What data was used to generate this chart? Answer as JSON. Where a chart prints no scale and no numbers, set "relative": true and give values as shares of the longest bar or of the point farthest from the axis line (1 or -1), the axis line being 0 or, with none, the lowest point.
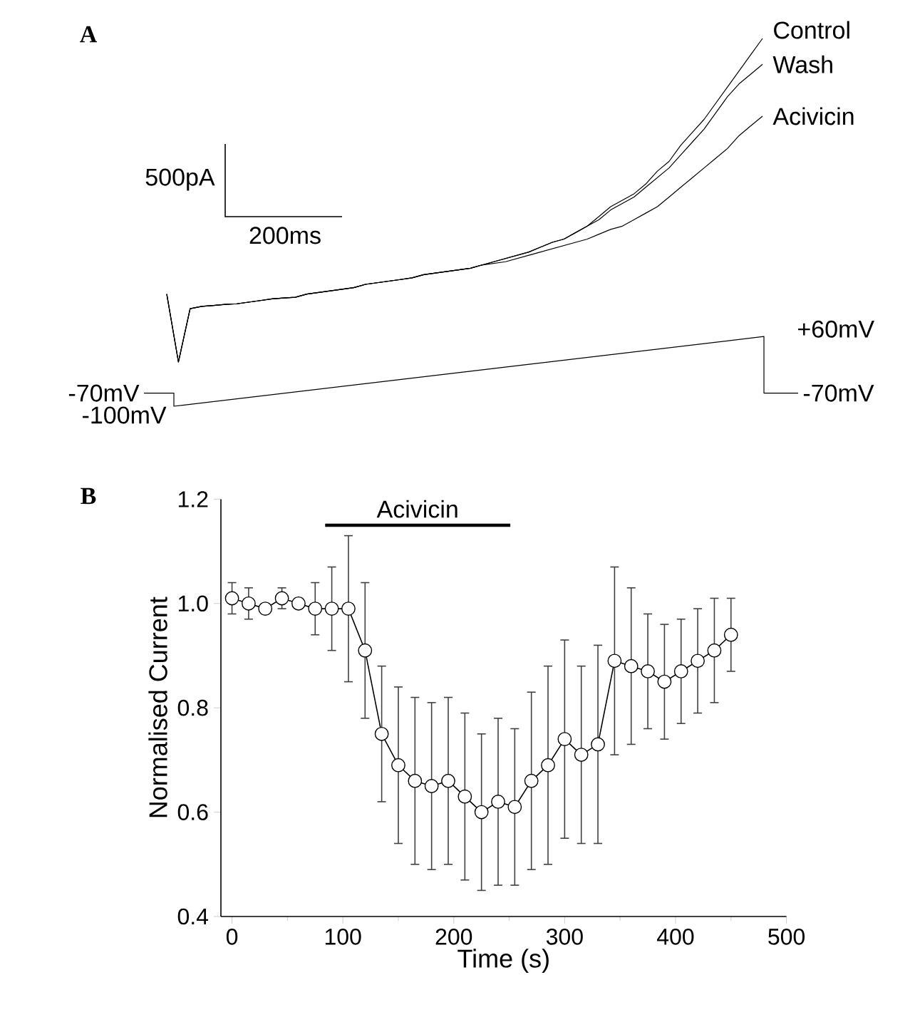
{
  "chart_data": [
    {
      "type": "line",
      "title": "A",
      "relative": true,
      "annotations": [
        "500pA",
        "200ms"
      ],
      "categories": [
        null,
        null,
        null,
        null,
        null,
        null,
        null,
        null,
        null,
        null,
        null,
        null,
        null,
        null,
        null,
        null,
        null,
        null,
        null,
        null,
        null,
        null,
        null,
        null,
        null,
        null,
        null,
        null,
        null,
        null,
        null,
        null,
        null,
        null,
        null,
        null,
        null,
        null,
        null,
        null,
        null,
        null,
        null,
        null,
        null,
        null,
        null,
        null,
        null,
        null,
        null,
        null
      ],
      "series": [
        {
          "name": "Control",
          "color": "#000000",
          "values": [
            0.21,
            0,
            0.165,
            0.172,
            0.175,
            0.178,
            0.18,
            0.185,
            0.19,
            0.195,
            0.198,
            0.2,
            0.21,
            0.215,
            0.22,
            0.225,
            0.23,
            0.24,
            0.245,
            0.25,
            0.255,
            0.26,
            0.27,
            0.275,
            0.28,
            0.285,
            0.29,
            0.3,
            0.31,
            0.32,
            0.33,
            0.34,
            0.355,
            0.37,
            0.38,
            0.4,
            0.42,
            0.45,
            0.48,
            0.5,
            0.52,
            0.55,
            0.59,
            0.62,
            0.67,
            0.71,
            0.75,
            0.8,
            0.85,
            0.9,
            0.95,
            1
          ]
        },
        {
          "name": "Wash",
          "color": "#000000",
          "values": [
            0.21,
            0,
            0.165,
            0.172,
            0.175,
            0.178,
            0.18,
            0.185,
            0.19,
            0.195,
            0.198,
            0.2,
            0.21,
            0.215,
            0.22,
            0.225,
            0.23,
            0.24,
            0.245,
            0.25,
            0.255,
            0.26,
            0.27,
            0.275,
            0.28,
            0.285,
            0.29,
            0.3,
            0.31,
            0.32,
            0.33,
            0.34,
            0.355,
            0.37,
            0.38,
            0.4,
            0.42,
            0.44,
            0.47,
            0.49,
            0.51,
            0.54,
            0.57,
            0.6,
            0.64,
            0.68,
            0.72,
            0.77,
            0.82,
            0.86,
            0.89,
            0.92
          ]
        },
        {
          "name": "Acivicin",
          "color": "#000000",
          "values": [
            0.21,
            0,
            0.165,
            0.172,
            0.175,
            0.178,
            0.18,
            0.185,
            0.19,
            0.195,
            0.198,
            0.2,
            0.21,
            0.215,
            0.22,
            0.225,
            0.23,
            0.24,
            0.245,
            0.25,
            0.255,
            0.26,
            0.27,
            0.275,
            0.28,
            0.285,
            0.29,
            0.3,
            0.305,
            0.31,
            0.32,
            0.33,
            0.34,
            0.35,
            0.36,
            0.37,
            0.38,
            0.395,
            0.41,
            0.42,
            0.44,
            0.46,
            0.48,
            0.51,
            0.54,
            0.57,
            0.6,
            0.63,
            0.66,
            0.7,
            0.73,
            0.76
          ]
        }
      ]
    },
    {
      "type": "other",
      "annotations": [
        "-70mV",
        "-100mV",
        "+60mV",
        "-70mV"
      ]
    },
    {
      "type": "line",
      "title": "B",
      "xlabel": "Time (s)",
      "ylabel": "Normalised Current",
      "xlim": [
        -10,
        500
      ],
      "ylim": [
        0.4,
        1.2
      ],
      "xticks": [
        0,
        100,
        200,
        300,
        400,
        500
      ],
      "yticks": [
        0.4,
        0.6,
        0.8,
        {
          "value": 1.0,
          "label": "1.0"
        },
        1.2
      ],
      "series": [
        {
          "color": "#000000",
          "marker": "circle",
          "x": [
            0,
            15,
            30,
            45,
            60,
            75,
            90,
            105,
            120,
            135,
            150,
            165,
            180,
            195,
            210,
            225,
            240,
            255,
            270,
            285,
            300,
            315,
            330,
            345,
            360,
            375,
            390,
            405,
            420,
            435,
            450
          ],
          "values": [
            1.01,
            1.0,
            0.99,
            1.01,
            1.0,
            0.99,
            0.99,
            0.99,
            0.91,
            0.75,
            0.69,
            0.66,
            0.65,
            0.66,
            0.63,
            0.6,
            0.62,
            0.61,
            0.66,
            0.69,
            0.74,
            0.71,
            0.73,
            0.89,
            0.88,
            0.87,
            0.85,
            0.87,
            0.89,
            0.91,
            0.94
          ],
          "errors": [
            0.03,
            0.03,
            0.01,
            0.02,
            0.01,
            0.05,
            0.08,
            0.14,
            0.13,
            0.13,
            0.15,
            0.16,
            0.16,
            0.16,
            0.16,
            0.15,
            0.16,
            0.15,
            0.17,
            0.19,
            0.19,
            0.17,
            0.19,
            0.18,
            0.15,
            0.11,
            0.11,
            0.1,
            0.1,
            0.1,
            0.07
          ]
        },
        {
          "name": "Acivicin",
          "color": "#000000",
          "marker": "none",
          "x": [
            84,
            251
          ],
          "values": [
            1.15,
            1.15
          ]
        }
      ]
    }
  ]
}
